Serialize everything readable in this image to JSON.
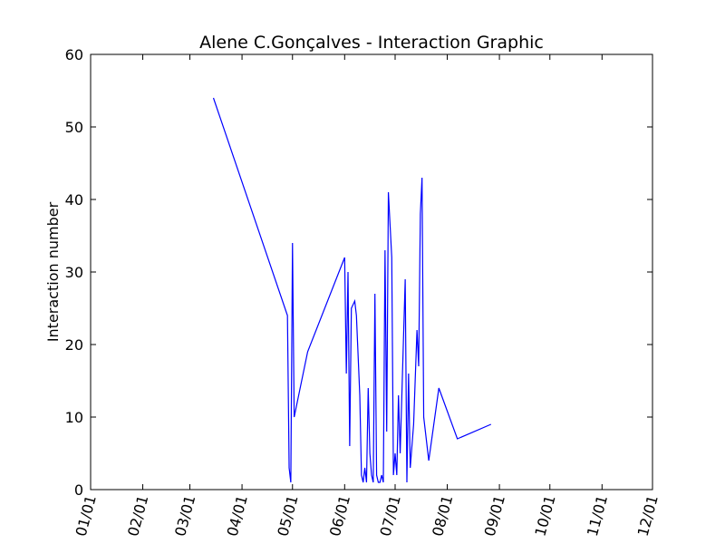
{
  "chart_data": {
    "type": "line",
    "title": "Alene C.Gonçalves - Interaction Graphic",
    "xlabel": "",
    "ylabel": "Interaction number",
    "x_ticks": [
      "01/01",
      "02/01",
      "03/01",
      "04/01",
      "05/01",
      "06/01",
      "07/01",
      "08/01",
      "09/01",
      "10/01",
      "11/01",
      "12/01"
    ],
    "ylim": [
      0,
      60
    ],
    "y_ticks": [
      0,
      10,
      20,
      30,
      40,
      50,
      60
    ],
    "grid": false,
    "series": [
      {
        "color": "#0000ff",
        "points": [
          [
            "03/15",
            54
          ],
          [
            "04/28",
            24
          ],
          [
            "04/29",
            3
          ],
          [
            "04/30",
            1
          ],
          [
            "05/01",
            34
          ],
          [
            "05/02",
            10
          ],
          [
            "05/10",
            19
          ],
          [
            "06/01",
            32
          ],
          [
            "06/02",
            16
          ],
          [
            "06/03",
            30
          ],
          [
            "06/04",
            6
          ],
          [
            "06/05",
            25
          ],
          [
            "06/07",
            26
          ],
          [
            "06/08",
            24
          ],
          [
            "06/10",
            13
          ],
          [
            "06/11",
            2
          ],
          [
            "06/12",
            1
          ],
          [
            "06/13",
            3
          ],
          [
            "06/14",
            1
          ],
          [
            "06/15",
            14
          ],
          [
            "06/16",
            5
          ],
          [
            "06/17",
            2
          ],
          [
            "06/18",
            1
          ],
          [
            "06/19",
            27
          ],
          [
            "06/20",
            2
          ],
          [
            "06/21",
            1
          ],
          [
            "06/22",
            1
          ],
          [
            "06/23",
            2
          ],
          [
            "06/24",
            1
          ],
          [
            "06/25",
            33
          ],
          [
            "06/26",
            8
          ],
          [
            "06/27",
            41
          ],
          [
            "06/29",
            32
          ],
          [
            "06/30",
            2
          ],
          [
            "07/01",
            5
          ],
          [
            "07/02",
            2
          ],
          [
            "07/03",
            13
          ],
          [
            "07/04",
            5
          ],
          [
            "07/07",
            29
          ],
          [
            "07/08",
            1
          ],
          [
            "07/09",
            16
          ],
          [
            "07/10",
            3
          ],
          [
            "07/12",
            9
          ],
          [
            "07/14",
            22
          ],
          [
            "07/15",
            17
          ],
          [
            "07/16",
            38
          ],
          [
            "07/17",
            43
          ],
          [
            "07/18",
            10
          ],
          [
            "07/21",
            4
          ],
          [
            "07/24",
            9
          ],
          [
            "07/27",
            14
          ],
          [
            "08/07",
            7
          ],
          [
            "08/27",
            9
          ]
        ]
      }
    ]
  }
}
